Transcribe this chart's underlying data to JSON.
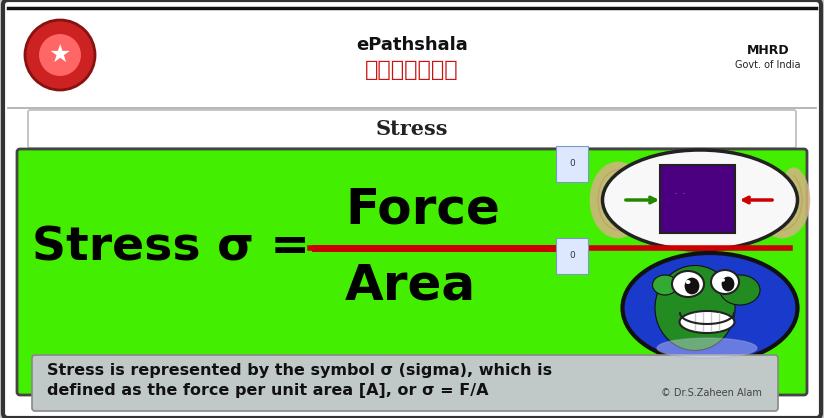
{
  "title": "Stress",
  "bg_color": "#ffffff",
  "green_bg": "#44ee00",
  "stress_label": "Stress σ =",
  "force_text": "Force",
  "area_text": "Area",
  "divider_color": "#cc0000",
  "info_text_line1": "Stress is represented by the symbol σ (sigma), which is",
  "info_text_line2": "defined as the force per unit area [A], or σ = F/A",
  "credit_text": "© Dr.S.Zaheen Alam",
  "title_fontsize": 15,
  "main_fontsize": 34,
  "info_fontsize": 11.5,
  "outer_bg": "#c8c8c8",
  "slide_border": "#333333",
  "header_line_color": "#999999",
  "title_box_border": "#bbbbbb"
}
